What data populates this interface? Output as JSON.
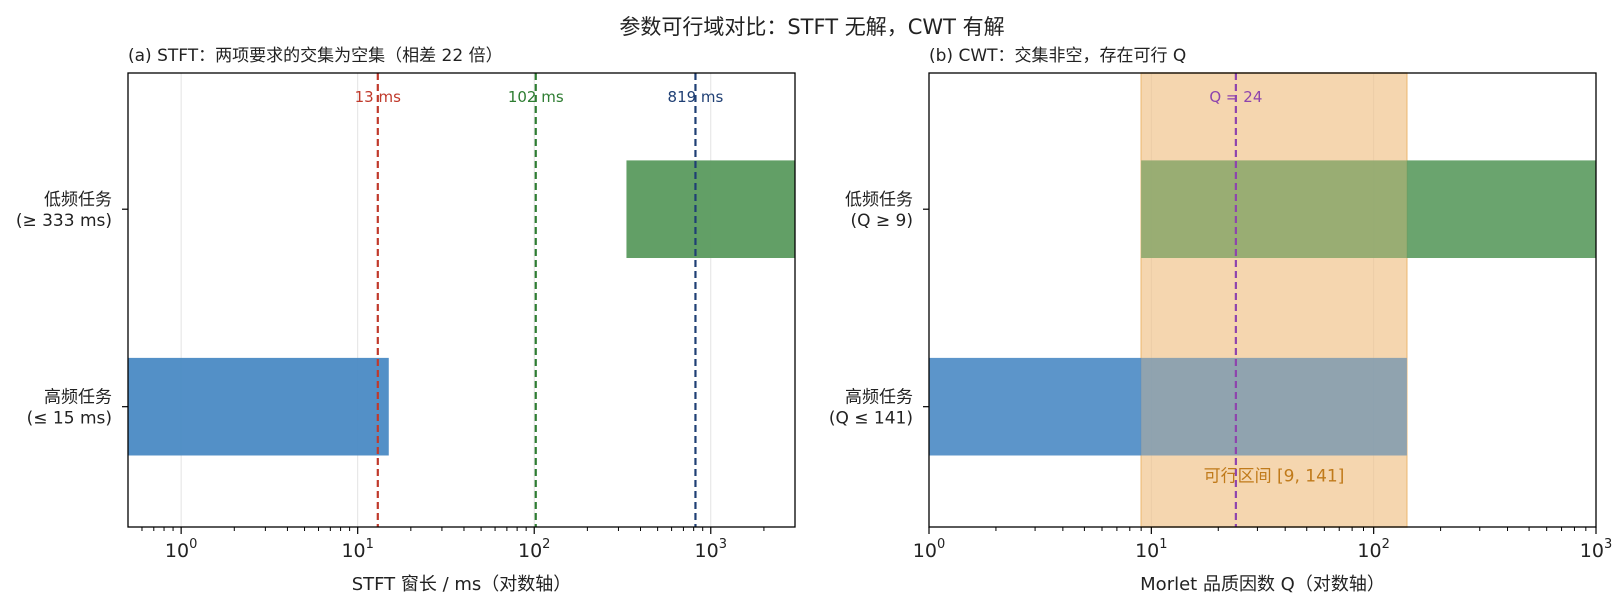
{
  "suptitle": "参数可行域对比：STFT 无解，CWT 有解",
  "chart_data": [
    {
      "type": "bar",
      "orientation": "horizontal",
      "title": "(a) STFT：两项要求的交集为空集（相差 22 倍）",
      "xlabel": "STFT 窗长 / ms（对数轴）",
      "xscale": "log",
      "xlim": [
        0.5,
        3000
      ],
      "x_ticks": [
        {
          "value": 1,
          "base": "10",
          "exp": "0"
        },
        {
          "value": 10,
          "base": "10",
          "exp": "1"
        },
        {
          "value": 100,
          "base": "10",
          "exp": "2"
        },
        {
          "value": 1000,
          "base": "10",
          "exp": "3"
        }
      ],
      "grid": "x",
      "categories": [
        {
          "line1": "低频任务",
          "line2": "(≥ 333 ms)"
        },
        {
          "line1": "高频任务",
          "line2": "(≤ 15 ms)"
        }
      ],
      "bars": [
        {
          "category": 0,
          "from": 333,
          "to": 3000,
          "color": "#5a9a5e"
        },
        {
          "category": 1,
          "from": 0.5,
          "to": 15,
          "color": "#4a8ac4"
        }
      ],
      "vlines": [
        {
          "x": 13,
          "label": "13 ms",
          "color": "#c0392b"
        },
        {
          "x": 102,
          "label": "102 ms",
          "color": "#2e7d32"
        },
        {
          "x": 819,
          "label": "819 ms",
          "color": "#1f3f74"
        }
      ]
    },
    {
      "type": "bar",
      "orientation": "horizontal",
      "title": "(b) CWT：交集非空，存在可行 Q",
      "xlabel": "Morlet 品质因数 Q（对数轴）",
      "xscale": "log",
      "xlim": [
        1,
        1000
      ],
      "x_ticks": [
        {
          "value": 1,
          "base": "10",
          "exp": "0"
        },
        {
          "value": 10,
          "base": "10",
          "exp": "1"
        },
        {
          "value": 100,
          "base": "10",
          "exp": "2"
        },
        {
          "value": 1000,
          "base": "10",
          "exp": "3"
        }
      ],
      "grid": "x",
      "categories": [
        {
          "line1": "低频任务",
          "line2": "(Q ≥ 9)"
        },
        {
          "line1": "高频任务",
          "line2": "(Q ≤ 141)"
        }
      ],
      "bars": [
        {
          "category": 0,
          "from": 9,
          "to": 1000,
          "color": "#5a9a5e"
        },
        {
          "category": 1,
          "from": 1,
          "to": 141,
          "color": "#4a8ac4"
        }
      ],
      "span": {
        "from": 9,
        "to": 141,
        "label": "可行区间 [9, 141]",
        "color": "#f0c48a",
        "label_color": "#c07a1a"
      },
      "vlines": [
        {
          "x": 24,
          "label": "Q = 24",
          "color": "#8e44ad"
        }
      ]
    }
  ]
}
